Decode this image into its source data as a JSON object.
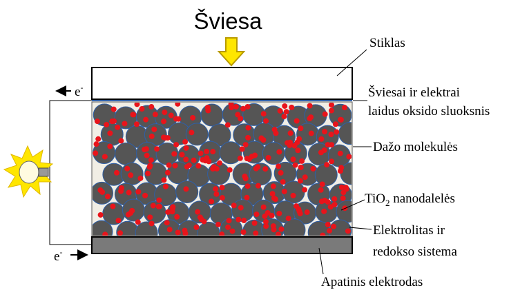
{
  "title": "Šviesa",
  "labels": {
    "glass": "Stiklas",
    "oxide": [
      "Šviesai ir elektrai",
      "laidus oksido sluoksnis"
    ],
    "dye": "Dažo molekulės",
    "tio2": {
      "base": "TiO",
      "sub": "2",
      "rest": " nanodalelės"
    },
    "electrolyte": [
      "Elektrolitas ir",
      "redokso sistema"
    ],
    "electrode": "Apatinis elektrodas"
  },
  "electron": {
    "symbol": "e",
    "charge": "-"
  }
}
